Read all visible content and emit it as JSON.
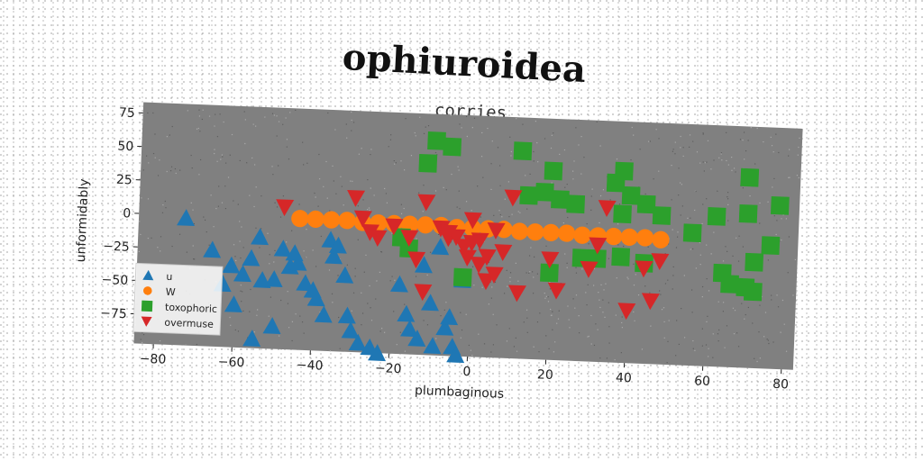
{
  "chart_data": {
    "type": "scatter",
    "title": "ophiuroidea",
    "subtitle": "corries",
    "xlabel": "plumbaginous",
    "ylabel": "unformidably",
    "xlim": [
      -85,
      83
    ],
    "ylim": [
      -97,
      83
    ],
    "xticks": [
      -80,
      -60,
      -40,
      -20,
      0,
      20,
      40,
      60,
      80
    ],
    "yticks": [
      -75,
      -50,
      -25,
      0,
      25,
      50,
      75
    ],
    "grid": false,
    "legend_position": "lower-left",
    "plot_background": "#808080",
    "series": [
      {
        "name": "u",
        "marker": "triangle-up",
        "color": "#1f77b4",
        "points": [
          [
            -73,
            -2
          ],
          [
            -66,
            -25
          ],
          [
            -61,
            -36
          ],
          [
            -58,
            -42
          ],
          [
            -56,
            -30
          ],
          [
            -54,
            -14
          ],
          [
            -53,
            -46
          ],
          [
            -50,
            -45
          ],
          [
            -48,
            -22
          ],
          [
            -46,
            -35
          ],
          [
            -45,
            -25
          ],
          [
            -44,
            -32
          ],
          [
            -42,
            -47
          ],
          [
            -40,
            -52
          ],
          [
            -39,
            -58
          ],
          [
            -37,
            -70
          ],
          [
            -36,
            -14
          ],
          [
            -35,
            -26
          ],
          [
            -34,
            -18
          ],
          [
            -32,
            -40
          ],
          [
            -31,
            -70
          ],
          [
            -30,
            -81
          ],
          [
            -28,
            -90
          ],
          [
            -25,
            -93
          ],
          [
            -23,
            -97
          ],
          [
            -18,
            -45
          ],
          [
            -16,
            -67
          ],
          [
            -15,
            -78
          ],
          [
            -13,
            -85
          ],
          [
            -12,
            -30
          ],
          [
            -10,
            -58
          ],
          [
            -9,
            -90
          ],
          [
            -8,
            -16
          ],
          [
            -6,
            -76
          ],
          [
            -5,
            -68
          ],
          [
            -4,
            -90
          ],
          [
            -3,
            -96
          ],
          [
            -2,
            -40
          ],
          [
            -55,
            -90
          ],
          [
            -50,
            -80
          ],
          [
            -63,
            -50
          ],
          [
            -60,
            -65
          ]
        ]
      },
      {
        "name": "W",
        "marker": "circle",
        "color": "#ff7f0e",
        "points": [
          [
            -44,
            1
          ],
          [
            -40,
            1
          ],
          [
            -36,
            1
          ],
          [
            -32,
            1
          ],
          [
            -28,
            0
          ],
          [
            -24,
            0
          ],
          [
            -20,
            0
          ],
          [
            -16,
            0
          ],
          [
            -12,
            0
          ],
          [
            -8,
            0
          ],
          [
            -4,
            -1
          ],
          [
            0,
            -1
          ],
          [
            4,
            -1
          ],
          [
            8,
            -1
          ],
          [
            12,
            -2
          ],
          [
            16,
            -2
          ],
          [
            20,
            -2
          ],
          [
            24,
            -2
          ],
          [
            28,
            -3
          ],
          [
            32,
            -3
          ],
          [
            36,
            -3
          ],
          [
            40,
            -3
          ],
          [
            44,
            -3
          ],
          [
            48,
            -4
          ]
        ]
      },
      {
        "name": "toxophoric",
        "marker": "square",
        "color": "#2ca02c",
        "points": [
          [
            -12,
            46
          ],
          [
            -10,
            63
          ],
          [
            -6,
            59
          ],
          [
            12,
            58
          ],
          [
            20,
            44
          ],
          [
            14,
            25
          ],
          [
            18,
            28
          ],
          [
            22,
            23
          ],
          [
            26,
            20
          ],
          [
            36,
            37
          ],
          [
            38,
            46
          ],
          [
            40,
            28
          ],
          [
            44,
            22
          ],
          [
            48,
            14
          ],
          [
            38,
            14
          ],
          [
            56,
            2
          ],
          [
            62,
            15
          ],
          [
            70,
            18
          ],
          [
            70,
            45
          ],
          [
            78,
            25
          ],
          [
            76,
            -5
          ],
          [
            72,
            -18
          ],
          [
            64,
            -27
          ],
          [
            66,
            -35
          ],
          [
            70,
            -37
          ],
          [
            72,
            -40
          ],
          [
            32,
            -20
          ],
          [
            38,
            -18
          ],
          [
            44,
            -22
          ],
          [
            28,
            -20
          ],
          [
            20,
            -32
          ],
          [
            -2,
            -38
          ],
          [
            -18,
            -10
          ],
          [
            -16,
            -18
          ]
        ]
      },
      {
        "name": "overmuse",
        "marker": "triangle-down",
        "color": "#d62728",
        "points": [
          [
            -48,
            9
          ],
          [
            -30,
            18
          ],
          [
            -28,
            3
          ],
          [
            -26,
            -7
          ],
          [
            -24,
            -11
          ],
          [
            -20,
            -2
          ],
          [
            -16,
            -10
          ],
          [
            -14,
            -26
          ],
          [
            -12,
            17
          ],
          [
            -12,
            -50
          ],
          [
            -8,
            -2
          ],
          [
            -6,
            -9
          ],
          [
            -4,
            -8
          ],
          [
            -2,
            -15
          ],
          [
            -1,
            -23
          ],
          [
            0,
            5
          ],
          [
            2,
            -10
          ],
          [
            2,
            -28
          ],
          [
            4,
            -22
          ],
          [
            4,
            -40
          ],
          [
            6,
            -35
          ],
          [
            6,
            -2
          ],
          [
            8,
            -18
          ],
          [
            10,
            23
          ],
          [
            12,
            -48
          ],
          [
            20,
            -22
          ],
          [
            22,
            -45
          ],
          [
            30,
            -28
          ],
          [
            32,
            -10
          ],
          [
            34,
            18
          ],
          [
            44,
            -26
          ],
          [
            46,
            -50
          ],
          [
            48,
            -20
          ],
          [
            40,
            -58
          ],
          [
            0,
            -12
          ],
          [
            -6,
            -5
          ]
        ]
      }
    ]
  }
}
